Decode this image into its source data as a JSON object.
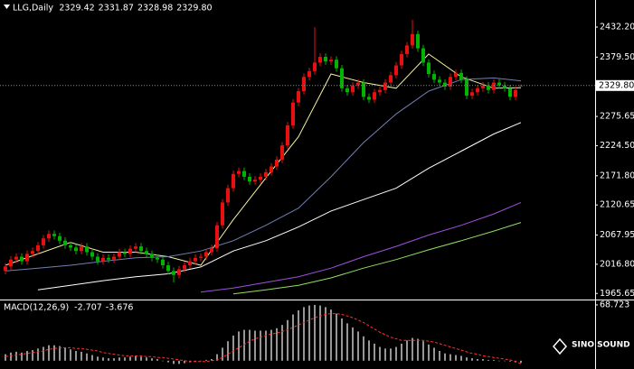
{
  "chart_data": [
    {
      "type": "candlestick",
      "title": "LLG,Daily",
      "header_values": [
        "2329.42",
        "2331.87",
        "2328.98",
        "2329.80"
      ],
      "open": [
        2005,
        2013,
        2025,
        2030,
        2022,
        2035,
        2040,
        2050,
        2062,
        2070,
        2066,
        2058,
        2050,
        2046,
        2040,
        2048,
        2038,
        2030,
        2022,
        2028,
        2025,
        2030,
        2038,
        2035,
        2044,
        2048,
        2040,
        2035,
        2028,
        2025,
        2015,
        2005,
        1998,
        2008,
        2015,
        2022,
        2028,
        2030,
        2038,
        2045,
        2085,
        2125,
        2150,
        2175,
        2180,
        2170,
        2162,
        2165,
        2170,
        2178,
        2188,
        2200,
        2225,
        2260,
        2300,
        2320,
        2345,
        2355,
        2370,
        2380,
        2372,
        2375,
        2360,
        2325,
        2318,
        2330,
        2335,
        2310,
        2305,
        2318,
        2322,
        2335,
        2348,
        2365,
        2385,
        2400,
        2420,
        2395,
        2370,
        2350,
        2340,
        2335,
        2328,
        2345,
        2352,
        2340,
        2312,
        2318,
        2325,
        2330,
        2322,
        2335,
        2330,
        2325,
        2310,
        2329.42
      ],
      "high": [
        2019,
        2031,
        2036,
        2036,
        2041,
        2046,
        2056,
        2068,
        2076,
        2076,
        2072,
        2064,
        2056,
        2052,
        2054,
        2054,
        2044,
        2036,
        2034,
        2034,
        2036,
        2044,
        2044,
        2050,
        2054,
        2054,
        2046,
        2041,
        2034,
        2031,
        2021,
        2011,
        2014,
        2021,
        2028,
        2034,
        2036,
        2044,
        2051,
        2091,
        2131,
        2156,
        2181,
        2186,
        2186,
        2176,
        2171,
        2176,
        2184,
        2194,
        2206,
        2231,
        2266,
        2306,
        2326,
        2351,
        2361,
        2432,
        2386,
        2386,
        2381,
        2381,
        2366,
        2331,
        2336,
        2341,
        2341,
        2316,
        2324,
        2328,
        2341,
        2354,
        2371,
        2391,
        2406,
        2445,
        2426,
        2401,
        2376,
        2356,
        2346,
        2341,
        2351,
        2358,
        2358,
        2346,
        2324,
        2331,
        2336,
        2336,
        2341,
        2341,
        2336,
        2331,
        2328,
        2331.87
      ],
      "low": [
        1999,
        2007,
        2019,
        2016,
        2016,
        2029,
        2034,
        2044,
        2056,
        2060,
        2052,
        2044,
        2040,
        2034,
        2034,
        2032,
        2024,
        2016,
        2016,
        2019,
        2019,
        2024,
        2029,
        2029,
        2038,
        2034,
        2029,
        2022,
        2019,
        2009,
        1999,
        1985,
        1992,
        2002,
        2009,
        2016,
        2022,
        2024,
        2032,
        2039,
        2079,
        2119,
        2144,
        2169,
        2164,
        2156,
        2156,
        2159,
        2164,
        2172,
        2182,
        2194,
        2219,
        2254,
        2294,
        2314,
        2339,
        2349,
        2364,
        2366,
        2366,
        2354,
        2319,
        2312,
        2312,
        2324,
        2304,
        2299,
        2299,
        2312,
        2316,
        2329,
        2342,
        2359,
        2379,
        2394,
        2389,
        2364,
        2344,
        2334,
        2329,
        2322,
        2322,
        2339,
        2334,
        2306,
        2306,
        2312,
        2319,
        2316,
        2316,
        2324,
        2319,
        2304,
        2304,
        2328.98
      ],
      "close": [
        2013,
        2025,
        2030,
        2022,
        2035,
        2040,
        2050,
        2062,
        2070,
        2066,
        2058,
        2050,
        2046,
        2040,
        2048,
        2038,
        2030,
        2022,
        2028,
        2025,
        2030,
        2038,
        2035,
        2044,
        2048,
        2040,
        2035,
        2028,
        2025,
        2015,
        2005,
        1998,
        2008,
        2015,
        2022,
        2028,
        2030,
        2038,
        2045,
        2085,
        2125,
        2150,
        2175,
        2180,
        2170,
        2162,
        2165,
        2170,
        2178,
        2188,
        2200,
        2225,
        2260,
        2300,
        2320,
        2345,
        2355,
        2370,
        2380,
        2372,
        2375,
        2360,
        2325,
        2318,
        2330,
        2335,
        2310,
        2305,
        2318,
        2322,
        2335,
        2348,
        2365,
        2385,
        2400,
        2420,
        2395,
        2370,
        2350,
        2340,
        2335,
        2328,
        2345,
        2352,
        2340,
        2312,
        2318,
        2325,
        2330,
        2322,
        2335,
        2330,
        2325,
        2310,
        2322,
        2329.8
      ],
      "up_color": "#e81010",
      "down_color": "#00b400",
      "overlay_x": [
        0,
        6,
        12,
        18,
        24,
        30,
        36,
        42,
        48,
        54,
        60,
        66,
        72,
        78,
        84,
        90,
        95
      ],
      "overlays": [
        {
          "color": "#f5f0a0",
          "values": [
            2015,
            2035,
            2055,
            2038,
            2038,
            2030,
            2015,
            2095,
            2168,
            2240,
            2350,
            2335,
            2325,
            2385,
            2345,
            2325,
            2326
          ]
        },
        {
          "color": "#7080b0",
          "values": [
            2005,
            2010,
            2015,
            2022,
            2028,
            2030,
            2040,
            2058,
            2085,
            2115,
            2170,
            2230,
            2280,
            2320,
            2340,
            2343,
            2338
          ]
        },
        {
          "color": "#ffffff",
          "values": [
            null,
            1972,
            1980,
            1988,
            1995,
            2000,
            2012,
            2040,
            2058,
            2082,
            2110,
            2130,
            2150,
            2185,
            2215,
            2245,
            2265
          ]
        },
        {
          "color": "#a050e0",
          "values": [
            null,
            null,
            null,
            null,
            null,
            null,
            1968,
            1975,
            1985,
            1995,
            2010,
            2030,
            2048,
            2068,
            2085,
            2105,
            2125
          ]
        },
        {
          "color": "#90e060",
          "values": [
            null,
            null,
            null,
            null,
            null,
            null,
            null,
            1965,
            1972,
            1980,
            1993,
            2010,
            2025,
            2042,
            2058,
            2075,
            2090
          ]
        }
      ],
      "current_price": {
        "value": 2329.8,
        "label": "2329.80"
      },
      "ylim": [
        1955,
        2479.6
      ],
      "yticks": [
        {
          "value": 2432.2,
          "label": "2432.20"
        },
        {
          "value": 2379.5,
          "label": "2379.50"
        },
        2275.65,
        {
          "value": 2224.5,
          "label": "2224.50"
        },
        {
          "value": 2171.8,
          "label": "2171.80"
        },
        2120.65,
        2067.95,
        {
          "value": 2016.8,
          "label": "2016.80"
        },
        1965.65
      ],
      "grid": false
    },
    {
      "type": "macd",
      "title": "MACD(12,26,9)",
      "value_labels": [
        "-2.707",
        "-3.676"
      ],
      "series": [
        {
          "color": "#c8c8c8",
          "style": "histogram",
          "values": [
            8,
            10,
            11,
            10,
            12,
            13,
            15,
            17,
            19,
            19,
            18,
            16,
            14,
            12,
            11,
            9,
            7,
            5,
            4,
            3,
            3,
            4,
            4,
            5,
            6,
            5,
            4,
            3,
            2,
            0,
            -2,
            -4,
            -4,
            -3,
            -2,
            -1,
            0,
            1,
            2,
            8,
            16,
            24,
            31,
            36,
            38,
            38,
            37,
            37,
            37,
            38,
            40,
            44,
            50,
            57,
            62,
            66,
            68,
            68.7,
            68,
            66,
            63,
            58,
            52,
            46,
            41,
            36,
            30,
            25,
            21,
            17,
            15,
            15,
            17,
            21,
            25,
            28,
            27,
            24,
            20,
            16,
            12,
            9,
            8,
            7,
            6,
            4,
            3,
            2,
            2,
            1,
            1,
            0,
            0,
            -1,
            -2,
            -2.707
          ]
        },
        {
          "color": "#ff3030",
          "style": "dashed",
          "values": [
            5,
            6,
            7,
            8,
            9,
            10,
            11,
            12,
            14,
            15,
            16,
            16,
            16,
            15,
            15,
            14,
            13,
            12,
            10,
            9,
            8,
            7,
            6,
            6,
            6,
            6,
            5,
            5,
            4,
            4,
            3,
            2,
            1,
            0,
            -1,
            -1,
            -1,
            -1,
            0,
            1,
            4,
            8,
            12,
            16,
            20,
            24,
            27,
            29,
            31,
            33,
            34,
            36,
            38,
            41,
            44,
            47,
            50,
            53,
            55,
            57,
            58,
            58,
            57,
            55,
            53,
            50,
            47,
            43,
            39,
            35,
            32,
            29,
            27,
            25,
            25,
            25,
            25,
            25,
            24,
            23,
            21,
            19,
            17,
            15,
            13,
            11,
            9,
            8,
            6,
            5,
            4,
            3,
            2,
            1,
            -1,
            -3.676
          ]
        }
      ],
      "ylim": [
        -8,
        72
      ],
      "yticks": [
        {
          "value": 68.723,
          "label": "68.723"
        }
      ]
    }
  ],
  "logo": "SINO SOUND"
}
